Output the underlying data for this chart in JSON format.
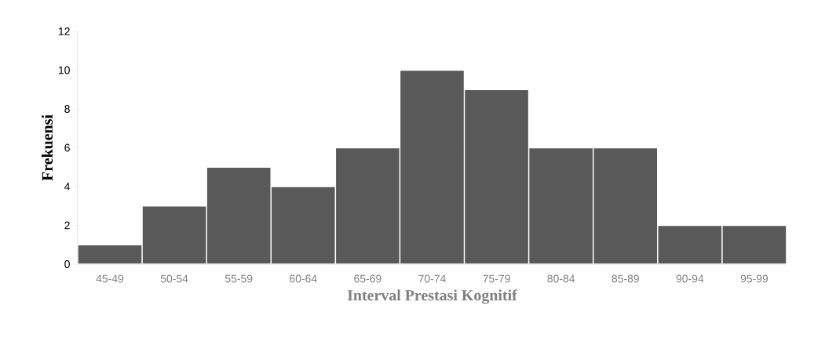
{
  "chart_data": {
    "type": "bar",
    "xlabel": "Interval Prestasi Kognitif",
    "ylabel": "Frekuensi",
    "categories": [
      "45-49",
      "50-54",
      "55-59",
      "60-64",
      "65-69",
      "70-74",
      "75-79",
      "80-84",
      "85-89",
      "90-94",
      "95-99"
    ],
    "values": [
      1,
      3,
      5,
      4,
      6,
      10,
      9,
      6,
      6,
      2,
      2
    ],
    "color": "#595959",
    "ylim": [
      0,
      12
    ],
    "yticks": [
      0,
      2,
      4,
      6,
      8,
      10,
      12
    ]
  }
}
